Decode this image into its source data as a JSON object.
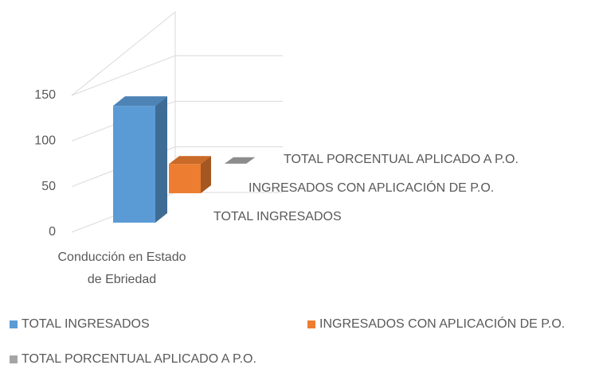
{
  "chart_data": {
    "type": "bar3d",
    "categories": [
      "Conducción en Estado de Ebriedad"
    ],
    "series": [
      {
        "name": "TOTAL INGRESADOS",
        "color": "#5b9bd5",
        "values": [
          136
        ]
      },
      {
        "name": "INGRESADOS CON APLICACIÓN DE P.O.",
        "color": "#ed7d31",
        "values": [
          37
        ]
      },
      {
        "name": "TOTAL PORCENTUAL APLICADO A P.O.",
        "color": "#a5a5a5",
        "values": [
          0.27
        ]
      }
    ],
    "ylim": [
      0,
      150
    ],
    "yticks": [
      0,
      50,
      100,
      150
    ],
    "grid": true,
    "legend": "bottom"
  }
}
